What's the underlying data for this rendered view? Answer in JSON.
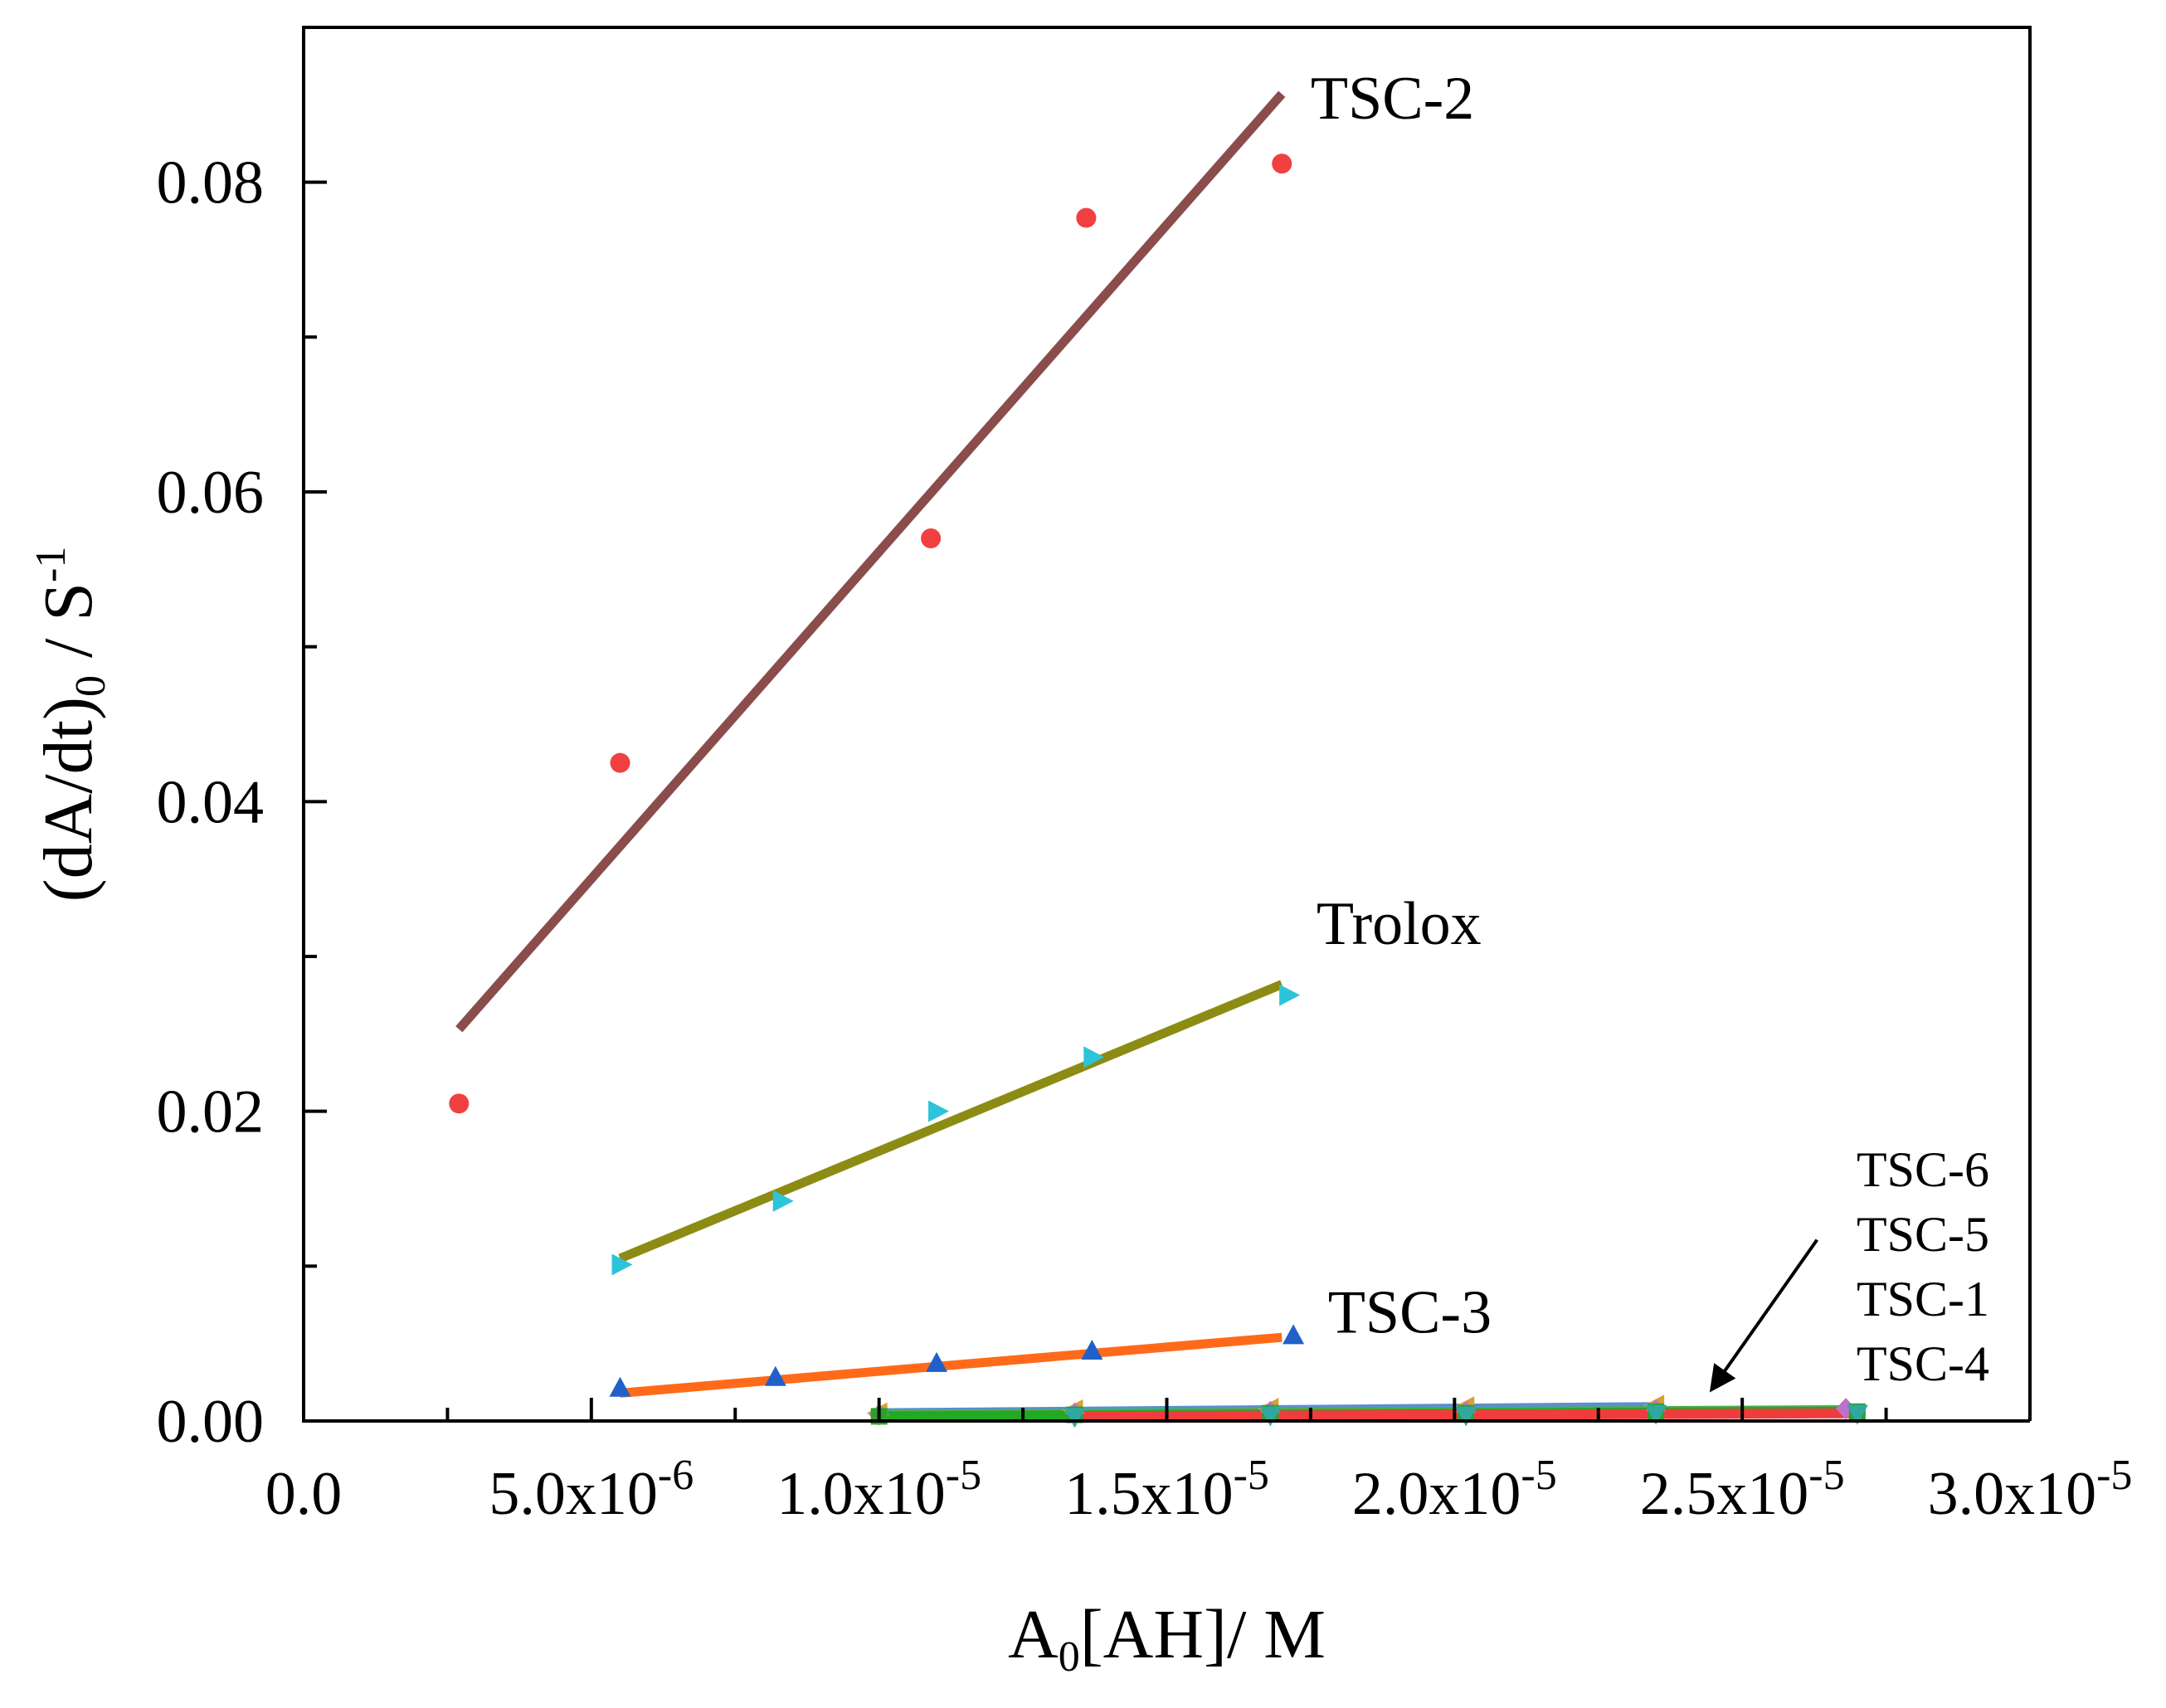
{
  "chart_data": {
    "type": "scatter",
    "title": "",
    "xlabel": {
      "main": "A",
      "sub": "0",
      "rest": "[AH]/ M"
    },
    "ylabel": {
      "pre": "(dA/dt)",
      "sub": "0",
      "mid": " / S",
      "sup": "-1"
    },
    "xlim": [
      0,
      3e-05
    ],
    "ylim": [
      0,
      0.09
    ],
    "x_ticks": [
      {
        "value": 0,
        "base": "0.0",
        "exp": ""
      },
      {
        "value": 5e-06,
        "base": "5.0x10",
        "exp": "-6"
      },
      {
        "value": 1e-05,
        "base": "1.0x10",
        "exp": "-5"
      },
      {
        "value": 1.5e-05,
        "base": "1.5x10",
        "exp": "-5"
      },
      {
        "value": 2e-05,
        "base": "2.0x10",
        "exp": "-5"
      },
      {
        "value": 2.5e-05,
        "base": "2.5x10",
        "exp": "-5"
      },
      {
        "value": 3e-05,
        "base": "3.0x10",
        "exp": "-5"
      }
    ],
    "y_ticks": [
      {
        "value": 0,
        "label": "0.00"
      },
      {
        "value": 0.02,
        "label": "0.02"
      },
      {
        "value": 0.04,
        "label": "0.04"
      },
      {
        "value": 0.06,
        "label": "0.06"
      },
      {
        "value": 0.08,
        "label": "0.08"
      }
    ],
    "series": [
      {
        "name": "TSC-2",
        "marker": "circle",
        "marker_color": "#f04040",
        "line_color": "#8b4c4c",
        "points": [
          [
            2.7e-06,
            0.0205
          ],
          [
            5.5e-06,
            0.0425
          ],
          [
            1.09e-05,
            0.057
          ],
          [
            1.36e-05,
            0.0777
          ],
          [
            1.7e-05,
            0.0812
          ]
        ],
        "fit": [
          [
            2.7e-06,
            0.0253
          ],
          [
            1.7e-05,
            0.0857
          ]
        ]
      },
      {
        "name": "Trolox",
        "marker": "triangle-right",
        "marker_color": "#2cc4d8",
        "line_color": "#8c8c14",
        "points": [
          [
            5.5e-06,
            0.0101
          ],
          [
            8.3e-06,
            0.0142
          ],
          [
            1.1e-05,
            0.02
          ],
          [
            1.37e-05,
            0.0235
          ],
          [
            1.71e-05,
            0.0275
          ]
        ],
        "fit": [
          [
            5.5e-06,
            0.0105
          ],
          [
            1.7e-05,
            0.0282
          ]
        ]
      },
      {
        "name": "TSC-3",
        "marker": "triangle-up",
        "marker_color": "#2060c8",
        "line_color": "#ff6a1a",
        "points": [
          [
            5.5e-06,
            0.0021
          ],
          [
            8.2e-06,
            0.0028
          ],
          [
            1.1e-05,
            0.0037
          ],
          [
            1.37e-05,
            0.0045
          ],
          [
            1.72e-05,
            0.0055
          ]
        ],
        "fit": [
          [
            5.5e-06,
            0.0018
          ],
          [
            1.7e-05,
            0.0054
          ]
        ]
      },
      {
        "name": "TSC-6",
        "marker": "triangle-left",
        "marker_color": "#d8a030",
        "line_color": "#5b8fd0",
        "points": [
          [
            1e-05,
            0.0005
          ],
          [
            1.34e-05,
            0.0007
          ],
          [
            1.68e-05,
            0.0008
          ],
          [
            2.02e-05,
            0.0009
          ],
          [
            2.35e-05,
            0.001
          ]
        ],
        "fit": [
          [
            1e-05,
            0.0005
          ],
          [
            2.35e-05,
            0.0009
          ]
        ]
      },
      {
        "name": "TSC-5",
        "marker": "diamond",
        "marker_color": "#c070c8",
        "line_color": "#4caf50",
        "points": [
          [
            1e-05,
            0.0004
          ],
          [
            1.34e-05,
            0.0005
          ],
          [
            1.68e-05,
            0.0006
          ],
          [
            2.02e-05,
            0.0006
          ],
          [
            2.35e-05,
            0.0007
          ],
          [
            2.68e-05,
            0.0008
          ]
        ],
        "fit": [
          [
            1e-05,
            0.0004
          ],
          [
            2.68e-05,
            0.0007
          ]
        ]
      },
      {
        "name": "TSC-1",
        "marker": "square",
        "marker_color": "#2ca02c",
        "line_color": "#22a822",
        "points": [
          [
            1e-05,
            0.0003
          ],
          [
            1.34e-05,
            0.0004
          ],
          [
            1.68e-05,
            0.0005
          ],
          [
            2.02e-05,
            0.0005
          ],
          [
            2.35e-05,
            0.0006
          ],
          [
            2.7e-05,
            0.0006
          ]
        ],
        "fit": [
          [
            1e-05,
            0.0003
          ],
          [
            2.7e-05,
            0.0006
          ]
        ]
      },
      {
        "name": "TSC-4",
        "marker": "triangle-down",
        "marker_color": "#30a8a0",
        "line_color": "#f03c3c",
        "points": [
          [
            1.34e-05,
            0.0003
          ],
          [
            1.68e-05,
            0.0004
          ],
          [
            2.02e-05,
            0.0004
          ],
          [
            2.35e-05,
            0.0005
          ],
          [
            2.7e-05,
            0.0005
          ]
        ],
        "fit": [
          [
            1.34e-05,
            0.0003
          ],
          [
            2.7e-05,
            0.0005
          ]
        ]
      }
    ],
    "annotations": {
      "curve_labels": [
        {
          "text": "TSC-2",
          "x": 1.75e-05,
          "y": 0.0855
        },
        {
          "text": "Trolox",
          "x": 1.76e-05,
          "y": 0.0322
        },
        {
          "text": "TSC-3",
          "x": 1.78e-05,
          "y": 0.0071
        }
      ],
      "stacked_labels": [
        "TSC-6",
        "TSC-5",
        "TSC-1",
        "TSC-4"
      ],
      "arrow": {
        "from": [
          2.63e-05,
          0.0117
        ],
        "to": [
          2.45e-05,
          0.0022
        ]
      }
    }
  }
}
